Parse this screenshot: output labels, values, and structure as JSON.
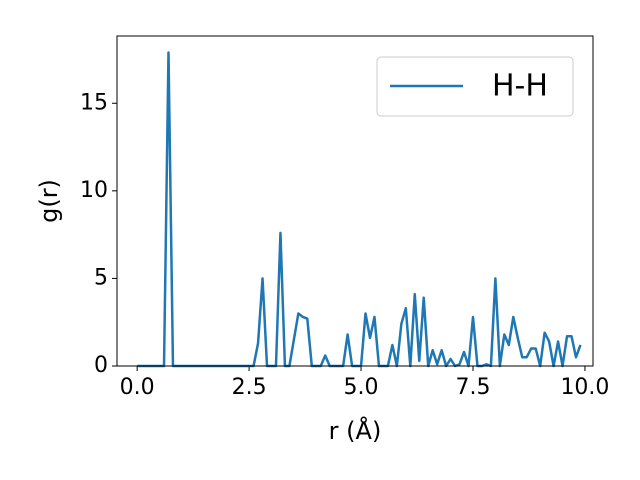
{
  "chart_data": {
    "type": "line",
    "x_label": "r (Å)",
    "y_label": "g(r)",
    "x": [
      0,
      0.1,
      0.2,
      0.3,
      0.4,
      0.5,
      0.6,
      0.7,
      0.8,
      0.9,
      1,
      1.1,
      1.2,
      1.3,
      1.4,
      1.5,
      1.6,
      1.7,
      1.8,
      1.9,
      2,
      2.1,
      2.2,
      2.3,
      2.4,
      2.5,
      2.6,
      2.7,
      2.8,
      2.9,
      3,
      3.1,
      3.2,
      3.3,
      3.4,
      3.5,
      3.6,
      3.7,
      3.8,
      3.9,
      4,
      4.1,
      4.2,
      4.3,
      4.4,
      4.5,
      4.6,
      4.7,
      4.8,
      4.9,
      5,
      5.1,
      5.2,
      5.3,
      5.4,
      5.5,
      5.6,
      5.7,
      5.8,
      5.9,
      6,
      6.1,
      6.2,
      6.3,
      6.4,
      6.5,
      6.6,
      6.7,
      6.8,
      6.9,
      7,
      7.1,
      7.2,
      7.3,
      7.4,
      7.5,
      7.6,
      7.7,
      7.8,
      7.9,
      8,
      8.1,
      8.2,
      8.3,
      8.4,
      8.5,
      8.6,
      8.7,
      8.8,
      8.9,
      9,
      9.1,
      9.2,
      9.3,
      9.4,
      9.5,
      9.6,
      9.7,
      9.8,
      9.9
    ],
    "series": [
      {
        "name": "H-H",
        "color": "#1f77b4",
        "values": [
          0,
          0,
          0,
          0,
          0,
          0,
          0,
          17.9,
          0,
          0,
          0,
          0,
          0,
          0,
          0,
          0,
          0,
          0,
          0,
          0,
          0,
          0,
          0,
          0,
          0,
          0,
          0,
          1.3,
          5.0,
          0,
          0,
          0,
          7.6,
          0,
          0,
          1.5,
          3.0,
          2.8,
          2.7,
          0,
          0,
          0,
          0.6,
          0,
          0,
          0,
          0,
          1.8,
          0,
          0,
          0,
          3.0,
          1.6,
          2.8,
          0,
          0,
          0,
          1.2,
          0,
          2.4,
          3.3,
          0,
          4.1,
          0.3,
          3.9,
          0,
          0.9,
          0.1,
          0.9,
          0,
          0.4,
          0,
          0.1,
          0.8,
          0,
          2.8,
          0,
          0,
          0.1,
          0,
          5.0,
          0,
          1.8,
          1.2,
          2.8,
          1.6,
          0.5,
          0.5,
          1.0,
          1.0,
          0,
          1.9,
          1.4,
          0,
          1.4,
          0,
          1.7,
          1.7,
          0.5,
          1.2
        ]
      }
    ],
    "xlim": [
      -0.45,
      10.18
    ],
    "ylim": [
      0,
      18.84
    ],
    "xticks": [
      {
        "value": 0,
        "label": "0.0"
      },
      2.5,
      {
        "value": 5,
        "label": "5.0"
      },
      7.5,
      {
        "value": 10,
        "label": "10.0"
      }
    ],
    "yticks": [
      0,
      5,
      10,
      15
    ],
    "legend": "upper right",
    "grid": false
  }
}
